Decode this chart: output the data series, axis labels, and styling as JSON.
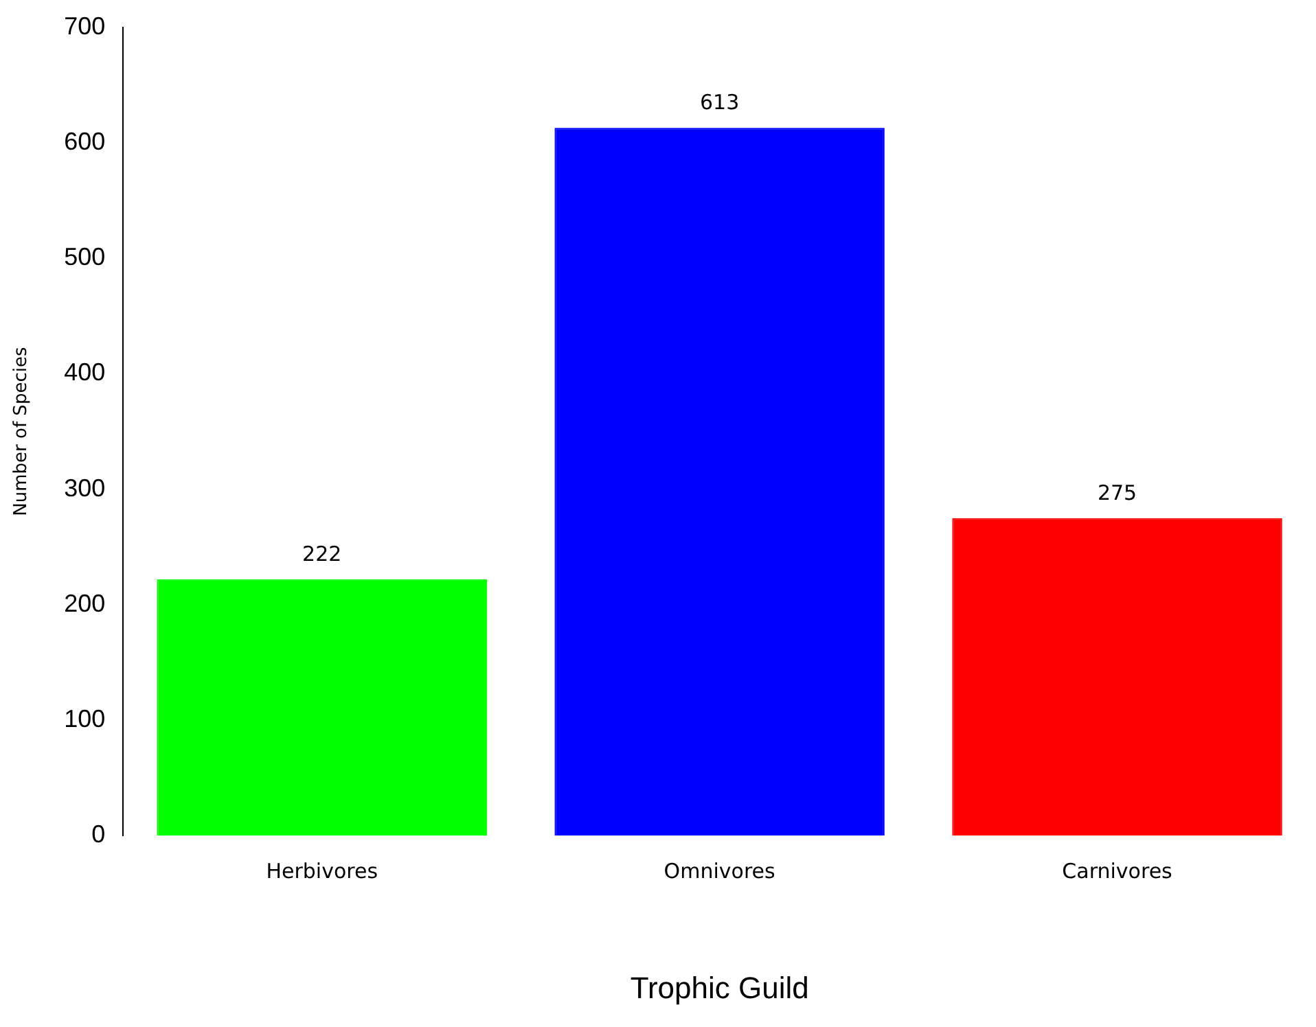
{
  "chart_data": {
    "type": "bar",
    "xlabel": "Trophic Guild",
    "ylabel": "Number of Species",
    "categories": [
      "Herbivores",
      "Omnivores",
      "Carnivores"
    ],
    "values": [
      222,
      613,
      275
    ],
    "colors": [
      "#00ff00",
      "#0000ff",
      "#ff0000"
    ],
    "ylim": [
      0,
      700
    ],
    "yticks": [
      0,
      100,
      200,
      300,
      400,
      500,
      600,
      700
    ],
    "grid": false,
    "legend": false,
    "data_labels": true
  }
}
